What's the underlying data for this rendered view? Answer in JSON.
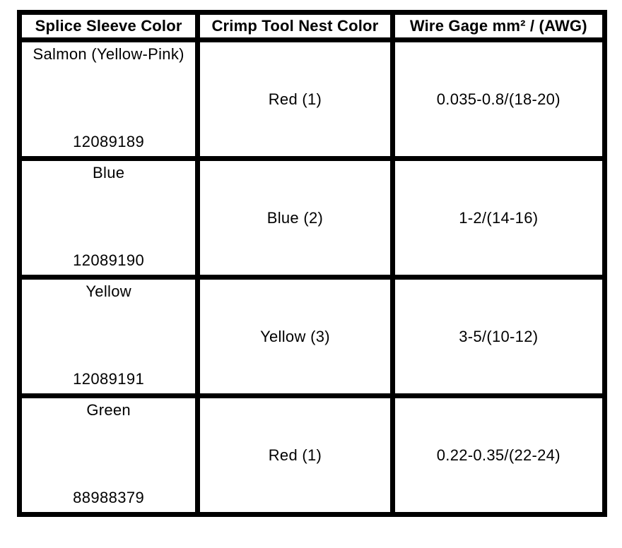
{
  "table": {
    "columns": [
      {
        "label": "Splice Sleeve Color"
      },
      {
        "label": "Crimp Tool Nest Color"
      },
      {
        "label": "Wire Gage mm² / (AWG)"
      }
    ],
    "rows": [
      {
        "sleeve_color": "Salmon (Yellow-Pink)",
        "part_number": "12089189",
        "nest_color": "Red (1)",
        "wire_gage": "0.035-0.8/(18-20)"
      },
      {
        "sleeve_color": "Blue",
        "part_number": "12089190",
        "nest_color": "Blue (2)",
        "wire_gage": "1-2/(14-16)"
      },
      {
        "sleeve_color": "Yellow",
        "part_number": "12089191",
        "nest_color": "Yellow (3)",
        "wire_gage": "3-5/(10-12)"
      },
      {
        "sleeve_color": "Green",
        "part_number": "88988379",
        "nest_color": "Red (1)",
        "wire_gage": "0.22-0.35/(22-24)"
      }
    ],
    "colors": {
      "border": "#000000",
      "background": "#ffffff",
      "text": "#000000"
    }
  }
}
